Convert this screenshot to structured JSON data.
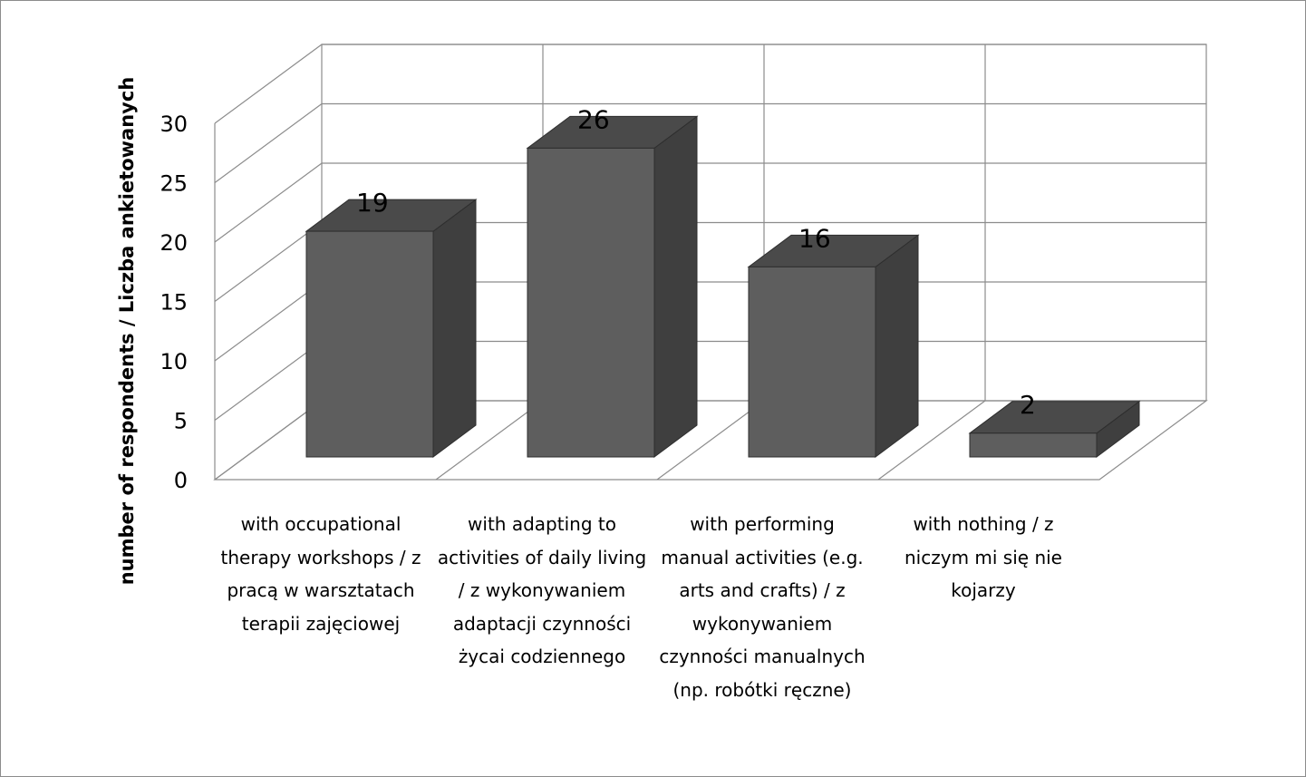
{
  "chart_data": {
    "type": "bar",
    "style": "3d-column",
    "title": "",
    "xlabel": "",
    "ylabel": "number of respondents / Liczba ankietowanych",
    "ylim": [
      0,
      30
    ],
    "yticks": [
      0,
      5,
      10,
      15,
      20,
      25,
      30
    ],
    "grid": true,
    "legend": "none",
    "categories": [
      "with occupational therapy workshops / z pracą w warsztatach terapii zajęciowej",
      "with adapting to activities of daily living / z wykonywaniem adaptacji czynności życai codziennego",
      "with performing manual activities (e.g. arts and crafts) / z wykonywaniem czynności manualnych (np. robótki ręczne)",
      "with nothing / z niczym mi się nie kojarzy"
    ],
    "values": [
      19,
      26,
      16,
      2
    ],
    "data_labels": [
      "19",
      "26",
      "16",
      "2"
    ],
    "colors": {
      "bar_front": "#5e5e5e",
      "bar_side": "#3f3f3f",
      "bar_top": "#4a4a4a",
      "gridline": "#8c8c8c"
    }
  }
}
